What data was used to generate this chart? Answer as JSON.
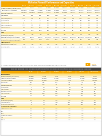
{
  "bg_color": "#f5f5f5",
  "white": "#ffffff",
  "orange": "#f5a800",
  "light_orange": "#fce38a",
  "lighter_orange": "#fef3cd",
  "dark_gray": "#444444",
  "med_gray": "#888888",
  "light_gray": "#e8e8e8",
  "lighter_gray": "#f2f2f2",
  "border_color": "#cccccc",
  "text_dark": "#222222",
  "text_med": "#555555",
  "text_light": "#777777",
  "table1_title": "PA-Series Firewall Performance and Capacities",
  "table2_title": "PAN-OS Release 10.1 Firewall Next-Generation Firewall Specifications and Performance Summary",
  "logo_text": "paloalto\nNETWORKS",
  "page_bg": "#f0f0f0"
}
